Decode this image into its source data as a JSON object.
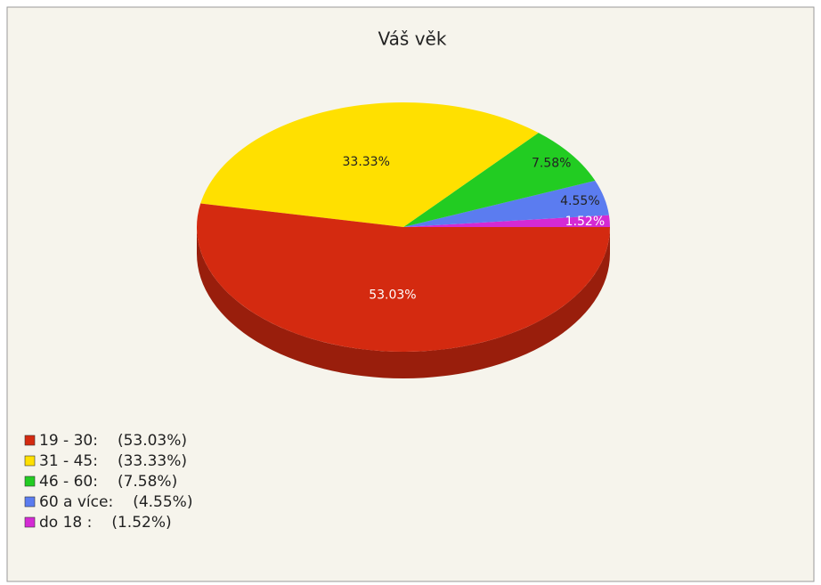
{
  "chart_data": {
    "type": "pie",
    "title": "Váš věk",
    "categories": [
      "19 - 30:",
      "31 - 45:",
      "46 - 60:",
      "60 a více:",
      "do 18 :"
    ],
    "values": [
      53.03,
      33.33,
      7.58,
      4.55,
      1.52
    ],
    "value_labels": [
      "53.03%",
      "33.33%",
      "7.58%",
      "4.55%",
      "1.52%"
    ],
    "legend_value_labels": [
      "(53.03%)",
      "(33.33%)",
      "(7.58%)",
      "(4.55%)",
      "(1.52%)"
    ],
    "colors": [
      "#d42a10",
      "#ffe000",
      "#22cc22",
      "#5b7cf0",
      "#d42ad4"
    ],
    "legend": "bottom-left"
  }
}
